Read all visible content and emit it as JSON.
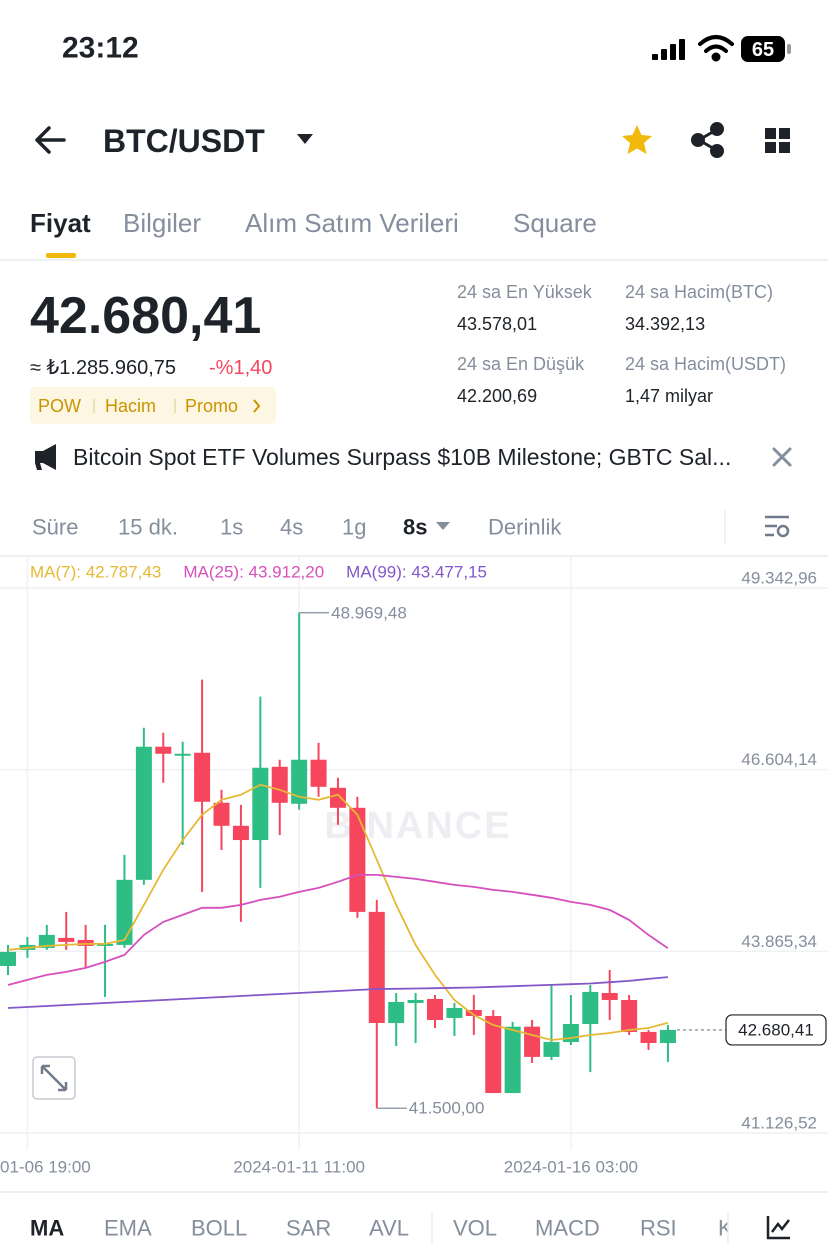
{
  "status_bar": {
    "time": "23:12",
    "battery": "65"
  },
  "header": {
    "pair": "BTC/USDT"
  },
  "tabs": [
    "Fiyat",
    "Bilgiler",
    "Alım Satım Verileri",
    "Square"
  ],
  "ticker": {
    "price": "42.680,41",
    "fiat_price": "≈ ₺1.285.960,75",
    "change": "-%1,40",
    "tags": [
      "POW",
      "Hacim",
      "Promo"
    ],
    "stats": [
      {
        "label": "24 sa En Yüksek",
        "value": "43.578,01"
      },
      {
        "label": "24 sa Hacim(BTC)",
        "value": "34.392,13"
      },
      {
        "label": "24 sa En Düşük",
        "value": "42.200,69"
      },
      {
        "label": "24 sa Hacim(USDT)",
        "value": "1,47 milyar"
      }
    ]
  },
  "news": "Bitcoin Spot ETF Volumes Surpass $10B Milestone; GBTC Sal...",
  "intervals": [
    "Süre",
    "15 dk.",
    "1s",
    "4s",
    "1g",
    "8s",
    "Derinlik"
  ],
  "chart_data": {
    "type": "candlestick",
    "watermark": "BINANCE",
    "up_color": "#2ebd85",
    "down_color": "#f6465d",
    "grid": true,
    "categories": [
      null,
      "01-06 19:00",
      null,
      null,
      null,
      null,
      null,
      null,
      null,
      null,
      null,
      null,
      null,
      null,
      null,
      "2024-01-11 11:00",
      null,
      null,
      null,
      null,
      null,
      null,
      null,
      null,
      null,
      null,
      null,
      null,
      null,
      "2024-01-16 03:00",
      null,
      null,
      null,
      null,
      null
    ],
    "open": [
      43645,
      43887,
      43917,
      44068,
      44037,
      43947,
      43962,
      44943,
      46950,
      46814,
      46859,
      46105,
      45758,
      45543,
      46648,
      46090,
      46754,
      46331,
      46029,
      44460,
      42785,
      43087,
      43147,
      42861,
      42981,
      42891,
      41729,
      42729,
      42274,
      42498,
      42770,
      43237,
      43132,
      42650,
      42483
    ],
    "high": [
      43962,
      44083,
      44264,
      44460,
      44264,
      44264,
      45320,
      47236,
      47161,
      47025,
      47961,
      46301,
      46074,
      47705,
      46754,
      48969.48,
      47010,
      46482,
      46195,
      44641,
      43237,
      43237,
      43207,
      43087,
      43207,
      42981,
      42802,
      42830,
      43358,
      43207,
      43358,
      43585,
      43207,
      42680,
      42755
    ],
    "low": [
      43508,
      43766,
      43887,
      43887,
      43615,
      43177,
      43917,
      44868,
      46406,
      45468,
      44762,
      45393,
      44309,
      44822,
      45619,
      45999,
      46195,
      45773,
      44369,
      41500,
      42438,
      42483,
      42710,
      42589,
      42604,
      41729,
      41729,
      42183,
      42228,
      42453,
      42045,
      42830,
      42604,
      42378,
      42198
    ],
    "close": [
      43857,
      43962,
      44113,
      44007,
      43947,
      43977,
      44943,
      46950,
      46844,
      46844,
      46120,
      45758,
      45543,
      46633,
      46105,
      46754,
      46346,
      46029,
      44460,
      42785,
      43102,
      43132,
      42830,
      43011,
      42891,
      41729,
      42729,
      42274,
      42498,
      42770,
      43253,
      43132,
      42650,
      42483,
      42680.41
    ],
    "ma": [
      {
        "name": "MA(7): 42.787,43",
        "color": "#e6b934",
        "values": [
          43887,
          43917,
          43947,
          43962,
          43977,
          43977,
          44037,
          44565,
          45094,
          45543,
          45924,
          46150,
          46225,
          46376,
          46301,
          46195,
          46150,
          46225,
          45924,
          45245,
          44565,
          43962,
          43510,
          43132,
          42906,
          42755,
          42680,
          42604,
          42529,
          42558,
          42604,
          42634,
          42680,
          42710,
          42787.43
        ]
      },
      {
        "name": "MA(25): 43.912,20",
        "color": "#d64fbd",
        "values": [
          43358,
          43434,
          43510,
          43555,
          43615,
          43706,
          43811,
          44113,
          44309,
          44415,
          44521,
          44521,
          44565,
          44641,
          44687,
          44762,
          44822,
          44913,
          45017,
          45017,
          44988,
          44958,
          44913,
          44867,
          44837,
          44792,
          44762,
          44717,
          44672,
          44611,
          44565,
          44490,
          44339,
          44113,
          43912.2
        ]
      },
      {
        "name": "MA(99): 43.477,15",
        "color": "#8257c9",
        "values": [
          43011,
          43026,
          43041,
          43056,
          43071,
          43087,
          43102,
          43117,
          43132,
          43147,
          43162,
          43177,
          43192,
          43207,
          43222,
          43237,
          43252,
          43267,
          43282,
          43297,
          43300,
          43305,
          43310,
          43315,
          43320,
          43330,
          43340,
          43350,
          43360,
          43370,
          43380,
          43400,
          43420,
          43450,
          43477.15
        ]
      }
    ],
    "ylim": [
      41126.52,
      49342.96
    ],
    "yticks": [
      {
        "value": 49342.96,
        "label": "49.342,96"
      },
      {
        "value": 46604.14,
        "label": "46.604,14"
      },
      {
        "value": 43865.34,
        "label": "43.865,34"
      },
      {
        "value": 41126.52,
        "label": "41.126,52"
      }
    ],
    "annotations": [
      {
        "index": 15,
        "value": 48969.48,
        "label": "48.969,48"
      },
      {
        "index": 19,
        "value": 41500,
        "label": "41.500,00"
      }
    ],
    "last_price": {
      "value": 42680.41,
      "label": "42.680,41"
    }
  },
  "indicators": [
    "MA",
    "EMA",
    "BOLL",
    "SAR",
    "AVL",
    "VOL",
    "MACD",
    "RSI",
    "K"
  ]
}
